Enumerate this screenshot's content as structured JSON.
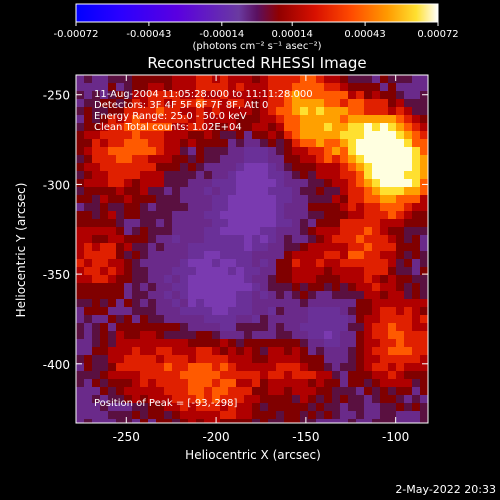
{
  "colorbar": {
    "ticks": [
      {
        "label": "-0.00072",
        "value": -0.00072
      },
      {
        "label": "-0.00043",
        "value": -0.00043
      },
      {
        "label": "-0.00014",
        "value": -0.00014
      },
      {
        "label": "0.00014",
        "value": 0.00014
      },
      {
        "label": "0.00043",
        "value": 0.00043
      },
      {
        "label": "0.00072",
        "value": 0.00072
      }
    ],
    "units_text": "(photons cm⁻² s⁻¹ asec⁻²)",
    "range": [
      -0.00072,
      0.00072
    ]
  },
  "title": "Reconstructed RHESSI Image",
  "annotations": {
    "time_range": "11-Aug-2004 11:05:28.000  to  11:11:28.000",
    "detectors": "Detectors: 3F 4F 5F 6F 7F 8F, Att 0",
    "energy": "Energy Range: 25.0 - 50.0 keV",
    "clean": "Clean     Total counts: 1.02E+04",
    "peak": "Position of Peak = [-93,-298]"
  },
  "axes": {
    "xlabel": "Heliocentric X (arcsec)",
    "ylabel": "Heliocentric Y (arcsec)",
    "xlim": [
      -278,
      -82
    ],
    "ylim": [
      -433,
      -239
    ],
    "xticks": [
      {
        "label": "-250",
        "value": -250
      },
      {
        "label": "-200",
        "value": -200
      },
      {
        "label": "-150",
        "value": -150
      },
      {
        "label": "-100",
        "value": -100
      }
    ],
    "yticks": [
      {
        "label": "-250",
        "value": -250
      },
      {
        "label": "-300",
        "value": -300
      },
      {
        "label": "-350",
        "value": -350
      },
      {
        "label": "-400",
        "value": -400
      }
    ]
  },
  "footer": {
    "timestamp": "2-May-2022 20:33"
  },
  "colors": {
    "background": "#000000",
    "foreground": "#ffffff",
    "colormap": [
      "#0000ff",
      "#5a00c0",
      "#6a1fa0",
      "#7a2a8a",
      "#8c0000",
      "#c00000",
      "#ff2000",
      "#ff7a00",
      "#ffd800",
      "#ffffff"
    ]
  }
}
